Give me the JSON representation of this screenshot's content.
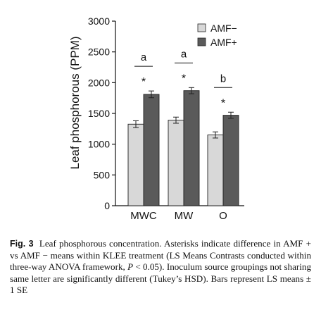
{
  "chart_data": {
    "type": "bar",
    "categories": [
      "MWC",
      "MW",
      "O"
    ],
    "series": [
      {
        "name": "AMF−",
        "values": [
          1325,
          1390,
          1150
        ],
        "errors": [
          55,
          50,
          50
        ],
        "color": "#d8d8d8"
      },
      {
        "name": "AMF+",
        "values": [
          1810,
          1870,
          1470
        ],
        "errors": [
          55,
          50,
          50
        ],
        "color": "#5a5a5a"
      }
    ],
    "ylabel": "Leaf phosphorous (PPM)",
    "xlabel": "",
    "ylim": [
      0,
      3000
    ],
    "yticks": [
      0,
      500,
      1000,
      1500,
      2000,
      2500,
      3000
    ],
    "group_letters": [
      "a",
      "a",
      "b"
    ],
    "asterisk_label": "*",
    "legend_position": "top-right",
    "grid": false
  },
  "caption": {
    "label": "Fig. 3",
    "text_1": "Leaf phosphorous concentration. Asterisks indicate difference in AMF + vs AMF − means within KLEE treatment (LS Means Contrasts conducted within three-way ANOVA framework, ",
    "p_symbol": "P",
    "text_2": " < 0.05). Inoculum source groupings not sharing same letter are significantly different (Tukey’s HSD). Bars represent LS means ± 1 SE"
  }
}
